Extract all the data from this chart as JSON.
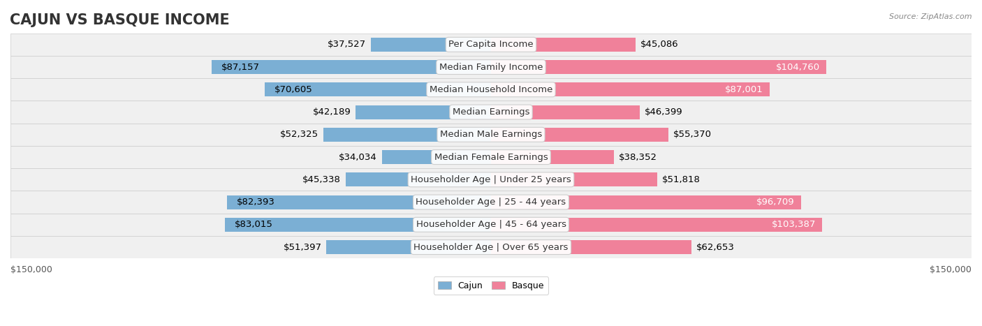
{
  "title": "CAJUN VS BASQUE INCOME",
  "source": "Source: ZipAtlas.com",
  "categories": [
    "Per Capita Income",
    "Median Family Income",
    "Median Household Income",
    "Median Earnings",
    "Median Male Earnings",
    "Median Female Earnings",
    "Householder Age | Under 25 years",
    "Householder Age | 25 - 44 years",
    "Householder Age | 45 - 64 years",
    "Householder Age | Over 65 years"
  ],
  "cajun_values": [
    37527,
    87157,
    70605,
    42189,
    52325,
    34034,
    45338,
    82393,
    83015,
    51397
  ],
  "basque_values": [
    45086,
    104760,
    87001,
    46399,
    55370,
    38352,
    51818,
    96709,
    103387,
    62653
  ],
  "cajun_labels": [
    "$37,527",
    "$87,157",
    "$70,605",
    "$42,189",
    "$52,325",
    "$34,034",
    "$45,338",
    "$82,393",
    "$83,015",
    "$51,397"
  ],
  "basque_labels": [
    "$45,086",
    "$104,760",
    "$87,001",
    "$46,399",
    "$55,370",
    "$38,352",
    "$51,818",
    "$96,709",
    "$103,387",
    "$62,653"
  ],
  "cajun_color": "#7bafd4",
  "basque_color": "#f0819a",
  "cajun_color_dark": "#5b96c8",
  "basque_color_dark": "#e8607f",
  "row_bg_color": "#f0f0f0",
  "max_value": 150000,
  "background_color": "#ffffff",
  "title_fontsize": 15,
  "label_fontsize": 9.5,
  "axis_fontsize": 9
}
